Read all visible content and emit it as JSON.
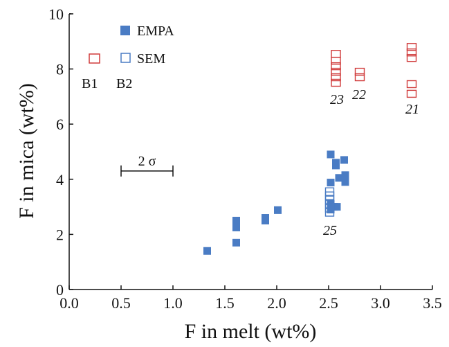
{
  "chart_data": {
    "type": "scatter",
    "xlabel": "F in melt (wt%)",
    "ylabel": "F in mica (wt%)",
    "xlim": [
      0,
      3.5
    ],
    "ylim": [
      0,
      10
    ],
    "xticks": [
      "0.0",
      "0.5",
      "1.0",
      "1.5",
      "2.0",
      "2.5",
      "3.0",
      "3.5"
    ],
    "yticks": [
      "0",
      "2",
      "4",
      "6",
      "8",
      "10"
    ],
    "legend": {
      "empa": "EMPA",
      "sem": "SEM",
      "b1": "B1",
      "b2": "B2"
    },
    "colors": {
      "blue": "#4a7cc4",
      "red": "#d03a3a"
    },
    "series": [
      {
        "name": "EMPA",
        "marker": "filled-square",
        "color": "#4a7cc4",
        "points": [
          [
            1.33,
            1.4
          ],
          [
            1.61,
            1.7
          ],
          [
            1.61,
            2.25
          ],
          [
            1.61,
            2.5
          ],
          [
            1.89,
            2.5
          ],
          [
            1.89,
            2.6
          ],
          [
            2.01,
            2.88
          ],
          [
            2.52,
            2.9
          ],
          [
            2.52,
            3.1
          ],
          [
            2.55,
            3.0
          ],
          [
            2.58,
            3.0
          ],
          [
            2.52,
            3.88
          ],
          [
            2.52,
            4.9
          ],
          [
            2.57,
            4.5
          ],
          [
            2.57,
            4.6
          ],
          [
            2.6,
            4.05
          ],
          [
            2.65,
            4.7
          ],
          [
            2.66,
            4.15
          ],
          [
            2.66,
            3.9
          ]
        ]
      },
      {
        "name": "SEM",
        "marker": "open-square",
        "color": "#4a7cc4",
        "points": [
          [
            2.51,
            2.8
          ],
          [
            2.51,
            2.95
          ],
          [
            2.51,
            3.1
          ],
          [
            2.51,
            3.25
          ],
          [
            2.51,
            3.4
          ],
          [
            2.51,
            3.55
          ]
        ]
      },
      {
        "name": "B1/B2",
        "marker": "open-square",
        "color": "#d03a3a",
        "groups": [
          {
            "label": "23",
            "points": [
              [
                2.57,
                7.5
              ],
              [
                2.57,
                7.7
              ],
              [
                2.57,
                7.9
              ],
              [
                2.57,
                8.1
              ],
              [
                2.57,
                8.3
              ],
              [
                2.57,
                8.55
              ]
            ]
          },
          {
            "label": "22",
            "points": [
              [
                2.8,
                7.7
              ],
              [
                2.8,
                7.9
              ]
            ]
          },
          {
            "label": "21",
            "points": [
              [
                3.3,
                7.1
              ],
              [
                3.3,
                7.45
              ],
              [
                3.3,
                8.4
              ],
              [
                3.3,
                8.6
              ],
              [
                3.3,
                8.8
              ]
            ]
          }
        ]
      }
    ],
    "annotations": {
      "sigma": "2 σ",
      "sigma_range": [
        0.5,
        1.0
      ],
      "sigma_y": 4.3,
      "label_25": "25",
      "label_23": "23",
      "label_22": "22",
      "label_21": "21"
    }
  }
}
